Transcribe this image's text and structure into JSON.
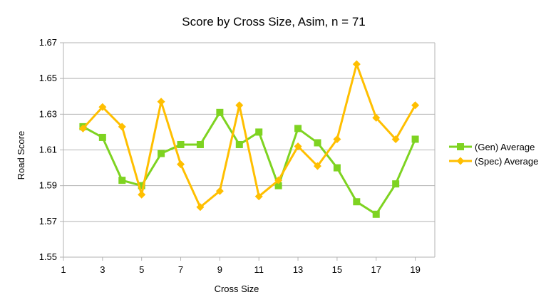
{
  "chart_data": {
    "type": "line",
    "title": "Score by Cross Size, Asim, n = 71",
    "xlabel": "Cross Size",
    "ylabel": "Road Score",
    "xlim": [
      1,
      20
    ],
    "ylim": [
      1.55,
      1.67
    ],
    "x_ticks": [
      1,
      3,
      5,
      7,
      9,
      11,
      13,
      15,
      17,
      19
    ],
    "y_ticks": [
      1.55,
      1.57,
      1.59,
      1.61,
      1.63,
      1.65,
      1.67
    ],
    "y_tick_labels": [
      "1.55",
      "1.57",
      "1.59",
      "1.61",
      "1.63",
      "1.65",
      "1.67"
    ],
    "grid": "horizontal",
    "legend_position": "right",
    "x": [
      2,
      3,
      4,
      5,
      6,
      7,
      8,
      9,
      10,
      11,
      12,
      13,
      14,
      15,
      16,
      17,
      18,
      19
    ],
    "series": [
      {
        "name": "(Gen) Average",
        "color": "#7ED321",
        "marker": "square",
        "values": [
          1.623,
          1.617,
          1.593,
          1.59,
          1.608,
          1.613,
          1.613,
          1.631,
          1.613,
          1.62,
          1.59,
          1.622,
          1.614,
          1.6,
          1.581,
          1.574,
          1.591,
          1.616
        ]
      },
      {
        "name": "(Spec) Average",
        "color": "#FFBF00",
        "marker": "diamond",
        "values": [
          1.622,
          1.634,
          1.623,
          1.585,
          1.637,
          1.602,
          1.578,
          1.587,
          1.635,
          1.584,
          1.593,
          1.612,
          1.601,
          1.616,
          1.658,
          1.628,
          1.616,
          1.635
        ]
      }
    ]
  }
}
